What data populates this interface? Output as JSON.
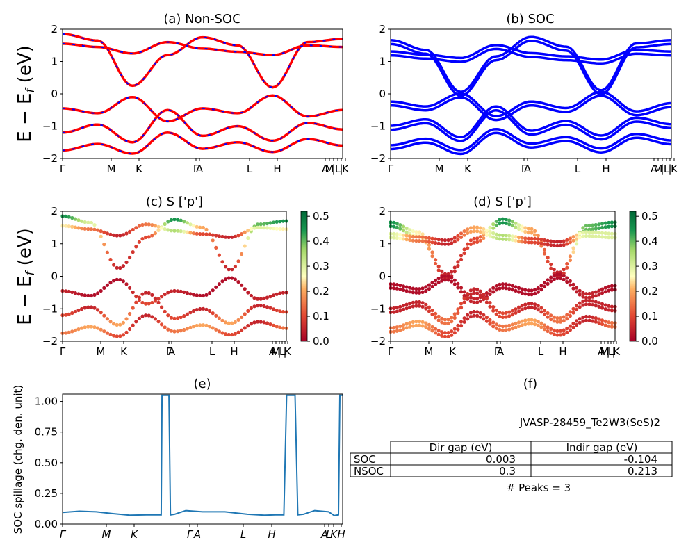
{
  "chart_data": [
    {
      "id": "a",
      "type": "line",
      "title": "(a) Non-SOC",
      "ylabel": "E − E_f (eV)",
      "ylim": [
        -2,
        2
      ],
      "yticks": [
        "2",
        "1",
        "0",
        "−1",
        "−2"
      ],
      "xticks": [
        "Γ",
        "M",
        "K",
        "Γ",
        "A",
        "L",
        "H",
        "A",
        "M",
        "|",
        "L",
        "|",
        "K"
      ],
      "series": [
        {
          "values": [
            1.85,
            1.65,
            0.25,
            1.2,
            1.75,
            1.5,
            0.2,
            1.6,
            1.7
          ],
          "color": "#ff0000"
        },
        {
          "values": [
            1.55,
            1.45,
            1.25,
            1.6,
            1.4,
            1.3,
            1.2,
            1.5,
            1.45
          ],
          "color": "#ff0000"
        },
        {
          "values": [
            -0.45,
            -0.6,
            -0.1,
            -0.85,
            -0.45,
            -0.6,
            -0.05,
            -0.7,
            -0.5
          ],
          "color": "#ff0000"
        },
        {
          "values": [
            -1.2,
            -0.95,
            -1.5,
            -0.5,
            -1.3,
            -1.0,
            -1.45,
            -0.9,
            -1.1
          ],
          "color": "#ff0000"
        },
        {
          "values": [
            -1.75,
            -1.55,
            -1.85,
            -1.2,
            -1.7,
            -1.5,
            -1.8,
            -1.4,
            -1.6
          ],
          "color": "#ff0000"
        }
      ]
    },
    {
      "id": "b",
      "type": "line",
      "title": "(b) SOC",
      "ylim": [
        -2,
        2
      ],
      "yticks": [
        "2",
        "1",
        "0",
        "−1",
        "−2"
      ],
      "xticks": [
        "Γ",
        "M",
        "K",
        "Γ",
        "A",
        "L",
        "H",
        "A",
        "M",
        "|",
        "L",
        "|",
        "K"
      ],
      "series": [
        {
          "values": [
            1.6,
            1.3,
            0.0,
            1.1,
            1.7,
            1.4,
            0.05,
            1.5,
            1.6
          ],
          "color": "#0000ff"
        },
        {
          "values": [
            1.25,
            1.15,
            1.05,
            1.45,
            1.2,
            1.1,
            1.0,
            1.3,
            1.25
          ],
          "color": "#0000ff"
        },
        {
          "values": [
            -0.3,
            -0.45,
            -0.05,
            -0.75,
            -0.3,
            -0.5,
            0.0,
            -0.6,
            -0.35
          ],
          "color": "#0000ff"
        },
        {
          "values": [
            -1.05,
            -0.85,
            -1.4,
            -0.45,
            -1.2,
            -0.9,
            -1.35,
            -0.8,
            -1.0
          ],
          "color": "#0000ff"
        },
        {
          "values": [
            -1.65,
            -1.45,
            -1.8,
            -1.15,
            -1.6,
            -1.4,
            -1.75,
            -1.3,
            -1.5
          ],
          "color": "#0000ff"
        }
      ]
    },
    {
      "id": "c",
      "type": "scatter",
      "title": "(c)  S ['p']",
      "ylabel": "E − E_f (eV)",
      "ylim": [
        -2,
        2
      ],
      "yticks": [
        "2",
        "1",
        "0",
        "−1",
        "−2"
      ],
      "xticks": [
        "Γ",
        "M",
        "K",
        "Γ",
        "A",
        "L",
        "H",
        "A",
        "M",
        "|",
        "L",
        "|",
        "K"
      ],
      "colorbar": {
        "min": 0.0,
        "max": 0.52,
        "ticks": [
          "0.5",
          "0.4",
          "0.3",
          "0.2",
          "0.1",
          "0.0"
        ]
      },
      "series": [
        {
          "values": [
            1.85,
            1.65,
            0.25,
            1.2,
            1.75,
            1.5,
            0.2,
            1.6,
            1.7
          ],
          "weights": [
            0.45,
            0.3,
            0.05,
            0.1,
            0.45,
            0.2,
            0.05,
            0.4,
            0.45
          ]
        },
        {
          "values": [
            1.55,
            1.45,
            1.25,
            1.6,
            1.4,
            1.3,
            1.2,
            1.5,
            1.45
          ],
          "weights": [
            0.25,
            0.15,
            0.05,
            0.15,
            0.35,
            0.1,
            0.05,
            0.3,
            0.25
          ]
        },
        {
          "values": [
            -0.45,
            -0.6,
            -0.1,
            -0.85,
            -0.45,
            -0.6,
            -0.05,
            -0.7,
            -0.5
          ],
          "weights": [
            0.05,
            0.02,
            0.02,
            0.1,
            0.05,
            0.02,
            0.02,
            0.05,
            0.05
          ]
        },
        {
          "values": [
            -1.2,
            -0.95,
            -1.5,
            -0.5,
            -1.3,
            -1.0,
            -1.45,
            -0.9,
            -1.1
          ],
          "weights": [
            0.1,
            0.05,
            0.2,
            0.05,
            0.1,
            0.05,
            0.2,
            0.05,
            0.1
          ]
        },
        {
          "values": [
            -1.75,
            -1.55,
            -1.85,
            -1.2,
            -1.7,
            -1.5,
            -1.8,
            -1.4,
            -1.6
          ],
          "weights": [
            0.15,
            0.2,
            0.1,
            0.05,
            0.15,
            0.2,
            0.1,
            0.05,
            0.15
          ]
        }
      ]
    },
    {
      "id": "d",
      "type": "scatter",
      "title": "(d) S ['p']",
      "ylim": [
        -2,
        2
      ],
      "yticks": [
        "2",
        "1",
        "0",
        "−1",
        "−2"
      ],
      "xticks": [
        "Γ",
        "M",
        "K",
        "Γ",
        "A",
        "L",
        "H",
        "A",
        "M",
        "|",
        "L",
        "|",
        "K"
      ],
      "colorbar": {
        "min": 0.0,
        "max": 0.52,
        "ticks": [
          "0.5",
          "0.4",
          "0.3",
          "0.2",
          "0.1",
          "0.0"
        ]
      },
      "series": [
        {
          "values": [
            1.6,
            1.3,
            0.0,
            1.1,
            1.7,
            1.4,
            0.05,
            1.5,
            1.6
          ],
          "weights": [
            0.45,
            0.25,
            0.05,
            0.1,
            0.45,
            0.2,
            0.05,
            0.4,
            0.45
          ]
        },
        {
          "values": [
            1.25,
            1.15,
            1.05,
            1.45,
            1.2,
            1.1,
            1.0,
            1.3,
            1.25
          ],
          "weights": [
            0.3,
            0.15,
            0.05,
            0.2,
            0.35,
            0.1,
            0.05,
            0.3,
            0.3
          ]
        },
        {
          "values": [
            -0.3,
            -0.45,
            -0.05,
            -0.75,
            -0.3,
            -0.5,
            0.0,
            -0.6,
            -0.35
          ],
          "weights": [
            0.02,
            0.02,
            0.02,
            0.05,
            0.02,
            0.02,
            0.02,
            0.05,
            0.02
          ]
        },
        {
          "values": [
            -1.05,
            -0.85,
            -1.4,
            -0.45,
            -1.2,
            -0.9,
            -1.35,
            -0.8,
            -1.0
          ],
          "weights": [
            0.05,
            0.05,
            0.15,
            0.05,
            0.1,
            0.05,
            0.15,
            0.05,
            0.05
          ]
        },
        {
          "values": [
            -1.65,
            -1.45,
            -1.8,
            -1.15,
            -1.6,
            -1.4,
            -1.75,
            -1.3,
            -1.5
          ],
          "weights": [
            0.15,
            0.2,
            0.1,
            0.05,
            0.15,
            0.2,
            0.1,
            0.05,
            0.15
          ]
        }
      ]
    },
    {
      "id": "e",
      "type": "line",
      "title": "(e)",
      "ylabel": "SOC spillage (chg. den. unit)",
      "ylim": [
        0,
        1.06
      ],
      "yticks": [
        "1.00",
        "0.75",
        "0.50",
        "0.25",
        "0.00"
      ],
      "xticks": [
        "Γ",
        "M",
        "K",
        "Γ",
        "A",
        "L",
        "H",
        "A",
        "L",
        "K",
        "H"
      ],
      "color": "#1f77b4",
      "x": [
        0,
        0.06,
        0.12,
        0.18,
        0.24,
        0.3,
        0.352,
        0.355,
        0.38,
        0.385,
        0.4,
        0.44,
        0.5,
        0.58,
        0.66,
        0.72,
        0.76,
        0.79,
        0.8,
        0.83,
        0.84,
        0.86,
        0.9,
        0.95,
        0.97,
        0.985,
        0.99,
        1.0
      ],
      "values": [
        0.095,
        0.105,
        0.1,
        0.085,
        0.072,
        0.075,
        0.075,
        1.05,
        1.05,
        0.075,
        0.08,
        0.11,
        0.1,
        0.1,
        0.08,
        0.072,
        0.075,
        0.075,
        1.05,
        1.05,
        0.075,
        0.08,
        0.11,
        0.1,
        0.07,
        0.075,
        1.05,
        1.05
      ]
    }
  ],
  "panel_f": {
    "title": "(f)",
    "material": "JVASP-28459_Te2W3(SeS)2",
    "headers": [
      "Dir gap (eV)",
      "Indir gap (eV)"
    ],
    "rows": [
      {
        "label": "SOC",
        "dir": "0.003",
        "indir": "-0.104"
      },
      {
        "label": "NSOC",
        "dir": "0.3",
        "indir": "0.213"
      }
    ],
    "peaks": "# Peaks = 3"
  }
}
